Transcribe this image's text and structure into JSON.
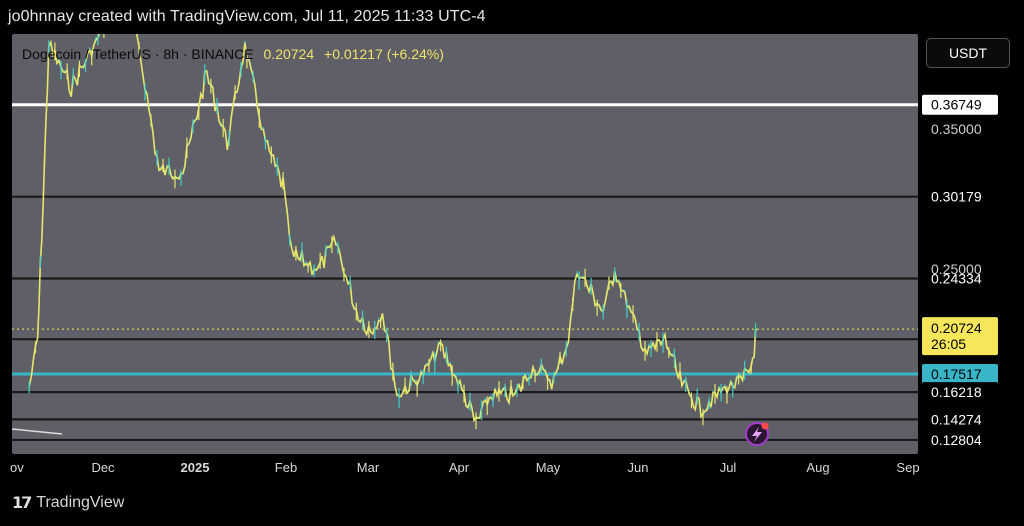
{
  "header": {
    "credit": "jo0hnnay created with TradingView.com, Jul 11, 2025 11:33 UTC-4"
  },
  "legend": {
    "symbol": "Dogecoin / TetherUS · 8h · BINANCE",
    "last": "0.20724",
    "change": "+0.01217 (+6.24%)"
  },
  "pair_label": "USDT",
  "footer": {
    "brand": "TradingView"
  },
  "colors": {
    "background": "#000000",
    "plot_bg": "#5f5f67",
    "candles": "#e8e46a",
    "candles_alt": "#3fd0c9",
    "support_line": "#1a1a1a",
    "top_line": "#ffffff",
    "cyan_line": "#38b6c8",
    "price_tag": "#f5e65a"
  },
  "chart_data": {
    "type": "line",
    "title": "Dogecoin / TetherUS · 8h · BINANCE",
    "ylim": [
      0.118,
      0.418
    ],
    "x_tick_labels": [
      "ov",
      "Dec",
      "2025",
      "Feb",
      "Mar",
      "Apr",
      "May",
      "Jun",
      "Jul",
      "Aug",
      "Sep"
    ],
    "y_tick_labels": [
      "0.35000",
      "0.25000"
    ],
    "current": {
      "price": 0.20724,
      "countdown": "26:05"
    },
    "horizontal_levels": [
      {
        "label": "0.36749",
        "value": 0.36749,
        "style": "white"
      },
      {
        "label": "0.30179",
        "value": 0.30179,
        "style": "dark"
      },
      {
        "label": "0.24334",
        "value": 0.24334,
        "style": "dark"
      },
      {
        "label": "0.20001",
        "value": 0.20001,
        "style": "dark"
      },
      {
        "label": "0.17517",
        "value": 0.17517,
        "style": "cyan"
      },
      {
        "label": "0.16218",
        "value": 0.16218,
        "style": "dark"
      },
      {
        "label": "0.14274",
        "value": 0.14274,
        "style": "dark"
      },
      {
        "label": "0.12804",
        "value": 0.12804,
        "style": "dark"
      }
    ],
    "price_path": [
      {
        "x": "Nov 5",
        "y": 0.165
      },
      {
        "x": "Nov 8",
        "y": 0.2
      },
      {
        "x": "Nov 10",
        "y": 0.3
      },
      {
        "x": "Nov 12",
        "y": 0.41
      },
      {
        "x": "Nov 20",
        "y": 0.38
      },
      {
        "x": "Dec 1",
        "y": 0.42
      },
      {
        "x": "Dec 8",
        "y": 0.46
      },
      {
        "x": "Dec 14",
        "y": 0.4
      },
      {
        "x": "Dec 20",
        "y": 0.32
      },
      {
        "x": "Dec 28",
        "y": 0.32
      },
      {
        "x": "Jan 5",
        "y": 0.39
      },
      {
        "x": "Jan 12",
        "y": 0.34
      },
      {
        "x": "Jan 18",
        "y": 0.41
      },
      {
        "x": "Jan 25",
        "y": 0.34
      },
      {
        "x": "Jan 31",
        "y": 0.31
      },
      {
        "x": "Feb 3",
        "y": 0.26
      },
      {
        "x": "Feb 12",
        "y": 0.25
      },
      {
        "x": "Feb 18",
        "y": 0.27
      },
      {
        "x": "Feb 25",
        "y": 0.22
      },
      {
        "x": "Mar 2",
        "y": 0.205
      },
      {
        "x": "Mar 6",
        "y": 0.22
      },
      {
        "x": "Mar 11",
        "y": 0.16
      },
      {
        "x": "Mar 20",
        "y": 0.175
      },
      {
        "x": "Mar 26",
        "y": 0.195
      },
      {
        "x": "Apr 1",
        "y": 0.17
      },
      {
        "x": "Apr 7",
        "y": 0.14
      },
      {
        "x": "Apr 12",
        "y": 0.16
      },
      {
        "x": "Apr 20",
        "y": 0.16
      },
      {
        "x": "Apr 26",
        "y": 0.18
      },
      {
        "x": "May 3",
        "y": 0.17
      },
      {
        "x": "May 8",
        "y": 0.2
      },
      {
        "x": "May 11",
        "y": 0.25
      },
      {
        "x": "May 20",
        "y": 0.22
      },
      {
        "x": "May 24",
        "y": 0.25
      },
      {
        "x": "May 31",
        "y": 0.21
      },
      {
        "x": "Jun 4",
        "y": 0.19
      },
      {
        "x": "Jun 10",
        "y": 0.2
      },
      {
        "x": "Jun 15",
        "y": 0.17
      },
      {
        "x": "Jun 22",
        "y": 0.15
      },
      {
        "x": "Jun 30",
        "y": 0.165
      },
      {
        "x": "Jul 6",
        "y": 0.17
      },
      {
        "x": "Jul 9",
        "y": 0.18
      },
      {
        "x": "Jul 11",
        "y": 0.20724
      }
    ]
  }
}
